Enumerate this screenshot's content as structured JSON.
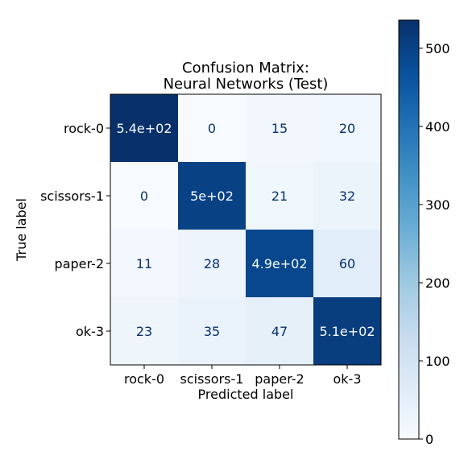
{
  "chart_data": {
    "type": "heatmap",
    "title": "Confusion Matrix:\nNeural Networks (Test)",
    "xlabel": "Predicted label",
    "ylabel": "True label",
    "x_categories": [
      "rock-0",
      "scissors-1",
      "paper-2",
      "ok-3"
    ],
    "y_categories": [
      "rock-0",
      "scissors-1",
      "paper-2",
      "ok-3"
    ],
    "values": [
      [
        540,
        0,
        15,
        20
      ],
      [
        0,
        500,
        21,
        32
      ],
      [
        11,
        28,
        490,
        60
      ],
      [
        23,
        35,
        47,
        510
      ]
    ],
    "cell_labels": [
      [
        "5.4e+02",
        "0",
        "15",
        "20"
      ],
      [
        "0",
        "5e+02",
        "21",
        "32"
      ],
      [
        "11",
        "28",
        "4.9e+02",
        "60"
      ],
      [
        "23",
        "35",
        "47",
        "5.1e+02"
      ]
    ],
    "colormap": "Blues",
    "colorbar": {
      "range": [
        0,
        536
      ],
      "ticks": [
        0,
        100,
        200,
        300,
        400,
        500
      ]
    }
  }
}
